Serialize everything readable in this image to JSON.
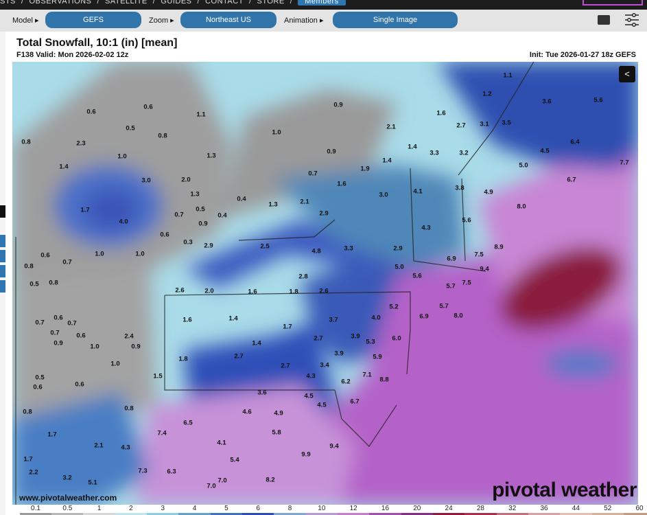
{
  "topnav": {
    "items": [
      "STS",
      "/",
      "OBSERVATIONS",
      "/",
      "SATELLITE",
      "/",
      "GUIDES",
      "/",
      "CONTACT",
      "/",
      "STORE",
      "/"
    ],
    "members": "Members"
  },
  "toolbar": {
    "model_label": "Model ▸",
    "model_value": "GEFS",
    "zoom_label": "Zoom ▸",
    "zoom_value": "Northeast US",
    "animation_label": "Animation ▸",
    "animation_value": "Single Image",
    "keyboard_icon": "keyboard-icon",
    "settings_icon": "sliders-icon"
  },
  "header": {
    "title": "Total Snowfall, 10:1 (in) [mean]",
    "valid": "F138 Valid: Mon 2026-02-02 12z",
    "init": "Init: Tue 2026-01-27 18z GEFS"
  },
  "map": {
    "share_icon": "share-icon",
    "url": "www.pivotalweather.com",
    "brand": "pivotal weather",
    "values": [
      "1.1",
      "1.2",
      "3.6",
      "5.6",
      "1.6",
      "2.7",
      "3.1",
      "3.5",
      "0.6",
      "0.6",
      "1.1",
      "0.9",
      "1.0",
      "2.1",
      "0.5",
      "0.8",
      "0.8",
      "2.3",
      "0.9",
      "1.4",
      "3.3",
      "3.2",
      "4.5",
      "6.4",
      "1.0",
      "1.3",
      "1.9",
      "1.4",
      "5.0",
      "7.7",
      "1.4",
      "3.0",
      "2.0",
      "0.7",
      "1.6",
      "3.0",
      "4.1",
      "3.8",
      "4.9",
      "6.7",
      "1.3",
      "0.4",
      "1.3",
      "2.1",
      "8.0",
      "1.7",
      "0.7",
      "0.5",
      "0.4",
      "2.9",
      "4.3",
      "5.6",
      "4.0",
      "0.9",
      "0.6",
      "0.3",
      "2.5",
      "3.3",
      "6.9",
      "7.5",
      "8.9",
      "2.9",
      "4.8",
      "2.9",
      "1.0",
      "1.0",
      "0.6",
      "5.0",
      "9.4",
      "0.7",
      "2.8",
      "5.6",
      "7.5",
      "2.6",
      "2.0",
      "1.6",
      "1.8",
      "2.6",
      "5.7",
      "5.7",
      "1.6",
      "1.4",
      "3.7",
      "4.0",
      "5.2",
      "6.9",
      "8.0",
      "1.7",
      "2.7",
      "6.0",
      "1.4",
      "5.3",
      "1.8",
      "2.7",
      "2.7",
      "3.9",
      "5.9",
      "3.4",
      "4.3",
      "3.9",
      "7.1",
      "8.8",
      "6.2",
      "4.5",
      "3.6",
      "4.5",
      "6.7",
      "6.5",
      "4.6",
      "4.9",
      "7.4",
      "5.8",
      "4.3",
      "4.1",
      "7.0",
      "5.4",
      "9.9",
      "9.4",
      "7.3",
      "6.3",
      "8.2",
      "7.0",
      "3.2",
      "5.1",
      "1.7",
      "2.2",
      "0.8",
      "1.7",
      "0.8",
      "0.8",
      "0.5",
      "0.5",
      "0.6",
      "0.6",
      "0.7",
      "0.6",
      "0.9",
      "0.7",
      "0.7",
      "0.6",
      "0.8",
      "1.5",
      "2.1",
      "2.4",
      "1.0",
      "0.9",
      "1.0"
    ]
  },
  "colorbar": {
    "ticks": [
      "0.1",
      "0.5",
      "1",
      "2",
      "3",
      "4",
      "5",
      "6",
      "8",
      "10",
      "12",
      "16",
      "20",
      "24",
      "28",
      "32",
      "36",
      "44",
      "52",
      "60"
    ],
    "colors": [
      "#9b9b9b",
      "#b8b8b8",
      "#d8d8d8",
      "#bfe6f0",
      "#8ccfe0",
      "#5fa3cc",
      "#3d72c0",
      "#2b4fb0",
      "#7ea6d6",
      "#b59ad6",
      "#c87bd0",
      "#a84ab8",
      "#8a2a8e",
      "#8e1c3c",
      "#a8304a",
      "#c86e7a",
      "#dca0a0",
      "#e8c0b0",
      "#d8b098",
      "#c89a80"
    ]
  },
  "colors": {
    "accent": "#3174a9",
    "gray": "#9e9e9e",
    "light_blue": "#a9dbe8",
    "blue": "#3d5cc0",
    "purple": "#b35cc8",
    "max": "#8e1c3c"
  }
}
